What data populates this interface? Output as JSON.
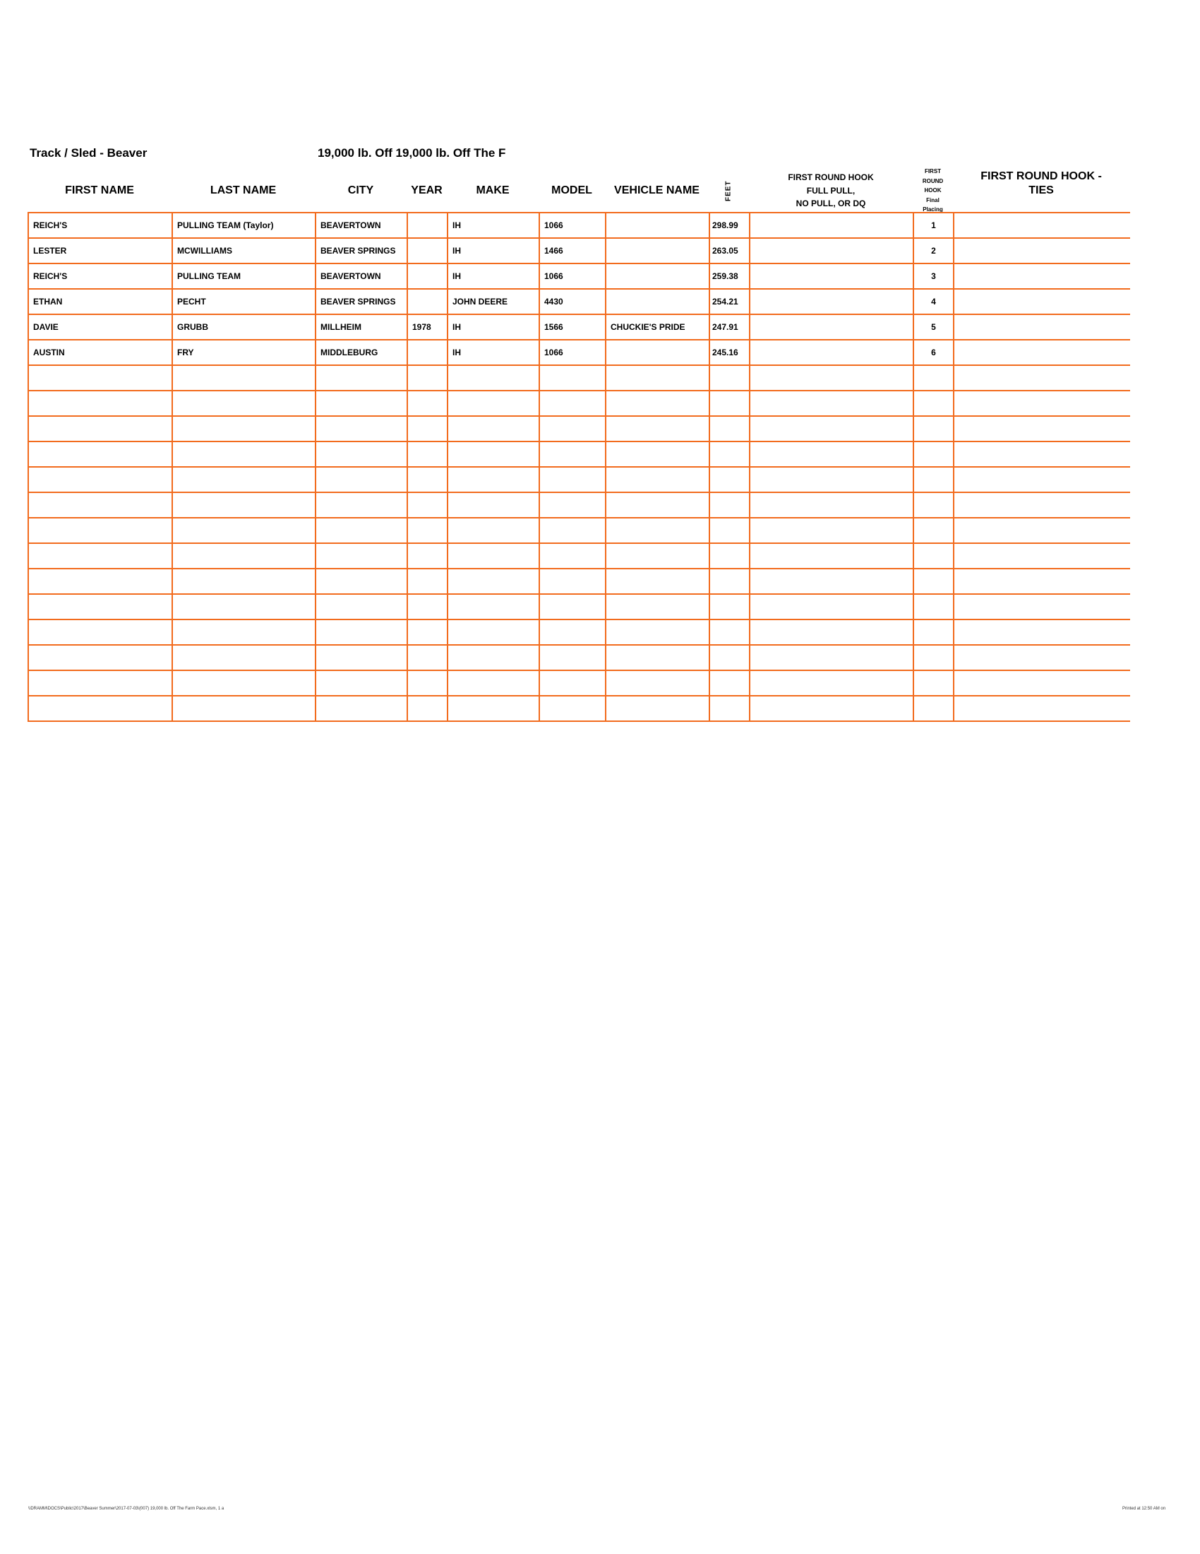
{
  "header": {
    "track_label": "Track / Sled - Beaver",
    "class_label": "19,000 lb. Off 19,000 lb. Off The F"
  },
  "columns": {
    "first_name": "FIRST NAME",
    "last_name": "LAST NAME",
    "city": "CITY",
    "year": "YEAR",
    "make": "MAKE",
    "model": "MODEL",
    "vehicle_name": "VEHICLE NAME",
    "feet": "FEET",
    "hook_line1": "FIRST ROUND HOOK",
    "hook_line2": "FULL PULL,",
    "hook_line3": "NO PULL, OR DQ",
    "placing_line1": "FIRST",
    "placing_line2": "ROUND",
    "placing_line3": "HOOK",
    "placing_line4": "Final",
    "placing_line5": "Placing",
    "ties_line1": "FIRST ROUND HOOK -",
    "ties_line2": "TIES"
  },
  "rows": [
    {
      "first": "REICH'S",
      "last": "PULLING TEAM (Taylor)",
      "city": "BEAVERTOWN",
      "year": "",
      "make": "IH",
      "model": "1066",
      "vehicle": "",
      "feet": "298.99",
      "hook": "",
      "place": "1",
      "ties": ""
    },
    {
      "first": "LESTER",
      "last": "MCWILLIAMS",
      "city": "BEAVER SPRINGS",
      "year": "",
      "make": "IH",
      "model": "1466",
      "vehicle": "",
      "feet": "263.05",
      "hook": "",
      "place": "2",
      "ties": ""
    },
    {
      "first": "REICH'S",
      "last": "PULLING TEAM",
      "city": "BEAVERTOWN",
      "year": "",
      "make": "IH",
      "model": "1066",
      "vehicle": "",
      "feet": "259.38",
      "hook": "",
      "place": "3",
      "ties": ""
    },
    {
      "first": "ETHAN",
      "last": "PECHT",
      "city": "BEAVER SPRINGS",
      "year": "",
      "make": "JOHN DEERE",
      "model": "4430",
      "vehicle": "",
      "feet": "254.21",
      "hook": "",
      "place": "4",
      "ties": ""
    },
    {
      "first": "DAVIE",
      "last": "GRUBB",
      "city": "MILLHEIM",
      "year": "1978",
      "make": "IH",
      "model": "1566",
      "vehicle": "CHUCKIE'S PRIDE",
      "feet": "247.91",
      "hook": "",
      "place": "5",
      "ties": ""
    },
    {
      "first": "AUSTIN",
      "last": "FRY",
      "city": "MIDDLEBURG",
      "year": "",
      "make": "IH",
      "model": "1066",
      "vehicle": "",
      "feet": "245.16",
      "hook": "",
      "place": "6",
      "ties": ""
    }
  ],
  "footer": {
    "path": "\\\\DRAMM\\DOCS\\Public\\2017\\Beaver Summer\\2017-07-03\\(007) 19,000 lb. Off The Farm Pace.xlsm, 1 a",
    "printed": "Printed at 12:50 AM on"
  },
  "colors": {
    "grid": "#f26b1d"
  }
}
